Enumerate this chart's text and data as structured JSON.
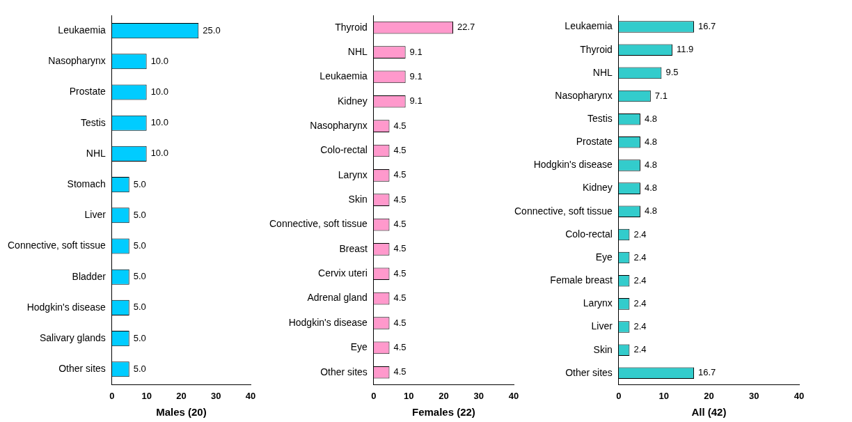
{
  "chart_data": [
    {
      "type": "bar",
      "orientation": "horizontal",
      "xlabel": "Males (20)",
      "categories": [
        "Leukaemia",
        "Nasopharynx",
        "Prostate",
        "Testis",
        "NHL",
        "Stomach",
        "Liver",
        "Connective, soft tissue",
        "Bladder",
        "Hodgkin's disease",
        "Salivary glands",
        "Other sites"
      ],
      "values": [
        25.0,
        10.0,
        10.0,
        10.0,
        10.0,
        5.0,
        5.0,
        5.0,
        5.0,
        5.0,
        5.0,
        5.0
      ],
      "value_labels": [
        "25.0",
        "10.0",
        "10.0",
        "10.0",
        "10.0",
        "5.0",
        "5.0",
        "5.0",
        "5.0",
        "5.0",
        "5.0",
        "5.0"
      ],
      "color": "#00ccff",
      "xlim": [
        0,
        40
      ],
      "xticks": [
        0,
        10,
        20,
        30,
        40
      ],
      "grid": false,
      "legend": false
    },
    {
      "type": "bar",
      "orientation": "horizontal",
      "xlabel": "Females (22)",
      "categories": [
        "Thyroid",
        "NHL",
        "Leukaemia",
        "Kidney",
        "Nasopharynx",
        "Colo-rectal",
        "Larynx",
        "Skin",
        "Connective, soft tissue",
        "Breast",
        "Cervix uteri",
        "Adrenal gland",
        "Hodgkin's disease",
        "Eye",
        "Other sites"
      ],
      "values": [
        22.7,
        9.1,
        9.1,
        9.1,
        4.5,
        4.5,
        4.5,
        4.5,
        4.5,
        4.5,
        4.5,
        4.5,
        4.5,
        4.5,
        4.5
      ],
      "value_labels": [
        "22.7",
        "9.1",
        "9.1",
        "9.1",
        "4.5",
        "4.5",
        "4.5",
        "4.5",
        "4.5",
        "4.5",
        "4.5",
        "4.5",
        "4.5",
        "4.5",
        "4.5"
      ],
      "color": "#ff99cc",
      "xlim": [
        0,
        40
      ],
      "xticks": [
        0,
        10,
        20,
        30,
        40
      ],
      "grid": false,
      "legend": false
    },
    {
      "type": "bar",
      "orientation": "horizontal",
      "xlabel": "All (42)",
      "categories": [
        "Leukaemia",
        "Thyroid",
        "NHL",
        "Nasopharynx",
        "Testis",
        "Prostate",
        "Hodgkin's disease",
        "Kidney",
        "Connective, soft tissue",
        "Colo-rectal",
        "Eye",
        "Female breast",
        "Larynx",
        "Liver",
        "Skin",
        "Other sites"
      ],
      "values": [
        16.7,
        11.9,
        9.5,
        7.1,
        4.8,
        4.8,
        4.8,
        4.8,
        4.8,
        2.4,
        2.4,
        2.4,
        2.4,
        2.4,
        2.4,
        16.7
      ],
      "value_labels": [
        "16.7",
        "11.9",
        "9.5",
        "7.1",
        "4.8",
        "4.8",
        "4.8",
        "4.8",
        "4.8",
        "2.4",
        "2.4",
        "2.4",
        "2.4",
        "2.4",
        "2.4",
        "16.7"
      ],
      "color": "#33cccc",
      "xlim": [
        0,
        40
      ],
      "xticks": [
        0,
        10,
        20,
        30,
        40
      ],
      "grid": false,
      "legend": false
    }
  ]
}
